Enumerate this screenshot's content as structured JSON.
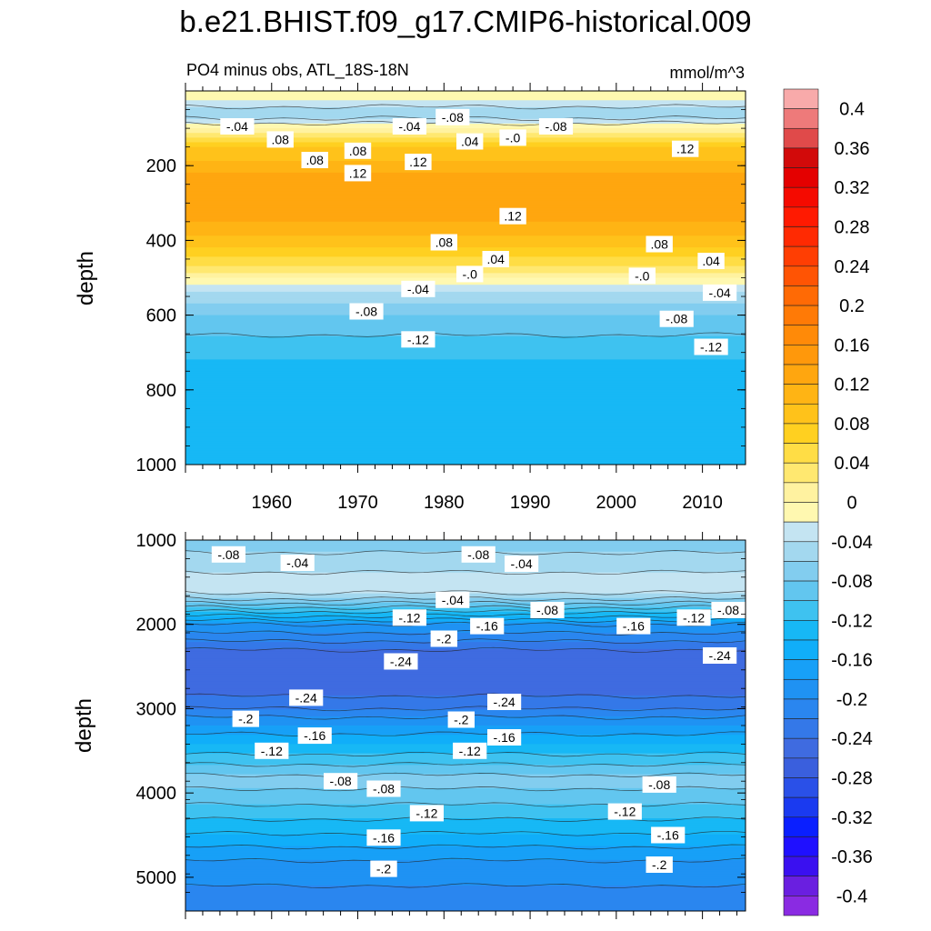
{
  "chart_data": {
    "type": "contour",
    "title": "b.e21.BHIST.f09_g17.CMIP6-historical.009",
    "subtitle_left": "PO4 minus obs, ATL_18S-18N",
    "subtitle_right": "mmol/m^3",
    "panels": [
      {
        "name": "upper",
        "ylabel": "depth",
        "ylim": [
          1000,
          0
        ],
        "yticks": [
          "200",
          "400",
          "600",
          "800",
          "1000"
        ],
        "xlim": [
          1950,
          2015
        ],
        "xticks": [
          "1960",
          "1970",
          "1980",
          "1990",
          "2000",
          "2010"
        ],
        "depth_profile": [
          {
            "depth": 25,
            "value": -0.02
          },
          {
            "depth": 60,
            "value": -0.06
          },
          {
            "depth": 100,
            "value": 0.0
          },
          {
            "depth": 150,
            "value": 0.08
          },
          {
            "depth": 220,
            "value": 0.12
          },
          {
            "depth": 280,
            "value": 0.14
          },
          {
            "depth": 350,
            "value": 0.12
          },
          {
            "depth": 420,
            "value": 0.08
          },
          {
            "depth": 470,
            "value": 0.04
          },
          {
            "depth": 500,
            "value": 0.0
          },
          {
            "depth": 540,
            "value": -0.04
          },
          {
            "depth": 600,
            "value": -0.08
          },
          {
            "depth": 680,
            "value": -0.11
          },
          {
            "depth": 760,
            "value": -0.13
          },
          {
            "depth": 1000,
            "value": -0.14
          }
        ],
        "contour_labels": [
          {
            "text": "-.04",
            "year": 1956,
            "depth": 95
          },
          {
            "text": ".08",
            "year": 1961,
            "depth": 130
          },
          {
            "text": "-.04",
            "year": 1976,
            "depth": 95
          },
          {
            "text": "-.08",
            "year": 1981,
            "depth": 70
          },
          {
            "text": ".08",
            "year": 1970,
            "depth": 160
          },
          {
            "text": ".04",
            "year": 1983,
            "depth": 135
          },
          {
            "text": "-.0",
            "year": 1988,
            "depth": 125
          },
          {
            "text": "-.08",
            "year": 1993,
            "depth": 95
          },
          {
            "text": ".08",
            "year": 1965,
            "depth": 185
          },
          {
            "text": ".12",
            "year": 1970,
            "depth": 220
          },
          {
            "text": ".12",
            "year": 1977,
            "depth": 190
          },
          {
            "text": ".12",
            "year": 2008,
            "depth": 155
          },
          {
            "text": ".12",
            "year": 1988,
            "depth": 335
          },
          {
            "text": ".08",
            "year": 1980,
            "depth": 405
          },
          {
            "text": ".08",
            "year": 2005,
            "depth": 410
          },
          {
            "text": ".04",
            "year": 1986,
            "depth": 450
          },
          {
            "text": ".04",
            "year": 2011,
            "depth": 455
          },
          {
            "text": "-.0",
            "year": 1983,
            "depth": 490
          },
          {
            "text": "-.0",
            "year": 2003,
            "depth": 495
          },
          {
            "text": "-.04",
            "year": 1977,
            "depth": 530
          },
          {
            "text": "-.04",
            "year": 2012,
            "depth": 540
          },
          {
            "text": "-.08",
            "year": 1971,
            "depth": 590
          },
          {
            "text": "-.08",
            "year": 2007,
            "depth": 610
          },
          {
            "text": "-.12",
            "year": 1977,
            "depth": 665
          },
          {
            "text": "-.12",
            "year": 2011,
            "depth": 685
          }
        ]
      },
      {
        "name": "lower",
        "ylabel": "depth",
        "ylim": [
          5400,
          1000
        ],
        "yticks": [
          "1000",
          "2000",
          "3000",
          "4000",
          "5000"
        ],
        "xlim": [
          1950,
          2015
        ],
        "xticks": [],
        "depth_profile": [
          {
            "depth": 1000,
            "value": -0.07
          },
          {
            "depth": 1300,
            "value": -0.05
          },
          {
            "depth": 1550,
            "value": -0.02
          },
          {
            "depth": 1700,
            "value": -0.06
          },
          {
            "depth": 1850,
            "value": -0.12
          },
          {
            "depth": 2000,
            "value": -0.18
          },
          {
            "depth": 2300,
            "value": -0.24
          },
          {
            "depth": 2700,
            "value": -0.26
          },
          {
            "depth": 3000,
            "value": -0.22
          },
          {
            "depth": 3300,
            "value": -0.16
          },
          {
            "depth": 3600,
            "value": -0.11
          },
          {
            "depth": 3850,
            "value": -0.07
          },
          {
            "depth": 4050,
            "value": -0.09
          },
          {
            "depth": 4400,
            "value": -0.13
          },
          {
            "depth": 4800,
            "value": -0.18
          },
          {
            "depth": 5400,
            "value": -0.22
          }
        ],
        "contour_labels": [
          {
            "text": "-.08",
            "year": 1955,
            "depth": 1170
          },
          {
            "text": "-.04",
            "year": 1963,
            "depth": 1270
          },
          {
            "text": "-.08",
            "year": 1984,
            "depth": 1170
          },
          {
            "text": "-.04",
            "year": 1989,
            "depth": 1280
          },
          {
            "text": "-.04",
            "year": 1981,
            "depth": 1710
          },
          {
            "text": "-.08",
            "year": 1992,
            "depth": 1830
          },
          {
            "text": "-.08",
            "year": 2013,
            "depth": 1830
          },
          {
            "text": "-.12",
            "year": 1976,
            "depth": 1920
          },
          {
            "text": "-.16",
            "year": 1985,
            "depth": 2020
          },
          {
            "text": "-.16",
            "year": 2002,
            "depth": 2020
          },
          {
            "text": "-.12",
            "year": 2009,
            "depth": 1920
          },
          {
            "text": "-.2",
            "year": 1980,
            "depth": 2170
          },
          {
            "text": "-.24",
            "year": 1975,
            "depth": 2440
          },
          {
            "text": "-.24",
            "year": 2012,
            "depth": 2370
          },
          {
            "text": "-.24",
            "year": 1964,
            "depth": 2870
          },
          {
            "text": "-.24",
            "year": 1987,
            "depth": 2920
          },
          {
            "text": "-.2",
            "year": 1957,
            "depth": 3120
          },
          {
            "text": "-.2",
            "year": 1982,
            "depth": 3130
          },
          {
            "text": "-.16",
            "year": 1965,
            "depth": 3320
          },
          {
            "text": "-.16",
            "year": 1987,
            "depth": 3340
          },
          {
            "text": "-.12",
            "year": 1960,
            "depth": 3500
          },
          {
            "text": "-.12",
            "year": 1983,
            "depth": 3500
          },
          {
            "text": "-.08",
            "year": 1968,
            "depth": 3860
          },
          {
            "text": "-.08",
            "year": 1973,
            "depth": 3950
          },
          {
            "text": "-.08",
            "year": 2005,
            "depth": 3900
          },
          {
            "text": "-.12",
            "year": 1978,
            "depth": 4240
          },
          {
            "text": "-.12",
            "year": 2001,
            "depth": 4220
          },
          {
            "text": "-.16",
            "year": 1973,
            "depth": 4530
          },
          {
            "text": "-.16",
            "year": 2006,
            "depth": 4500
          },
          {
            "text": "-.2",
            "year": 1973,
            "depth": 4900
          },
          {
            "text": "-.2",
            "year": 2005,
            "depth": 4850
          }
        ]
      }
    ],
    "colorbar": {
      "levels": [
        -0.42,
        -0.4,
        -0.38,
        -0.36,
        -0.34,
        -0.32,
        -0.3,
        -0.28,
        -0.26,
        -0.24,
        -0.22,
        -0.2,
        -0.18,
        -0.16,
        -0.14,
        -0.12,
        -0.1,
        -0.08,
        -0.06,
        -0.04,
        -0.02,
        0,
        0.02,
        0.04,
        0.06,
        0.08,
        0.1,
        0.12,
        0.14,
        0.16,
        0.18,
        0.2,
        0.22,
        0.24,
        0.26,
        0.28,
        0.3,
        0.32,
        0.34,
        0.36,
        0.38,
        0.4,
        0.42
      ],
      "tick_labels": [
        "0.4",
        "0.36",
        "0.32",
        "0.28",
        "0.24",
        "0.2",
        "0.16",
        "0.12",
        "0.08",
        "0.04",
        "0",
        "-0.04",
        "-0.08",
        "-0.12",
        "-0.16",
        "-0.2",
        "-0.24",
        "-0.28",
        "-0.32",
        "-0.36",
        "-0.4"
      ],
      "colors": [
        "#8a2be2",
        "#6a1fe0",
        "#3a10f0",
        "#1f10ff",
        "#0a1fff",
        "#1a3af0",
        "#2a50e8",
        "#3a5fdd",
        "#3f6be0",
        "#3478e8",
        "#2a86ef",
        "#1f92f3",
        "#17a0f7",
        "#10aef9",
        "#17b8f5",
        "#3ec2f0",
        "#62c6ef",
        "#82cdef",
        "#a3d8ef",
        "#c4e4f2",
        "#fff8b0",
        "#fff2a0",
        "#ffe870",
        "#ffdd45",
        "#ffd020",
        "#ffc21a",
        "#ffb414",
        "#ffa60f",
        "#ff980b",
        "#ff8a08",
        "#ff7a06",
        "#ff6a05",
        "#ff5404",
        "#ff3e03",
        "#ff2a02",
        "#ff1a01",
        "#f50a00",
        "#e40000",
        "#d20a0a",
        "#e04a4a",
        "#ee7a7a",
        "#f8aaaa"
      ]
    }
  }
}
